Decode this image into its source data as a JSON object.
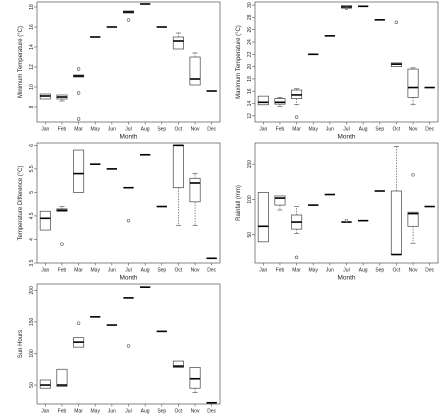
{
  "chart_data": [
    {
      "type": "box",
      "title": "",
      "xlabel": "Month",
      "ylabel": "Minimum Temperature (°C)",
      "ylim": [
        6.5,
        18.5
      ],
      "yticks": [
        8,
        10,
        12,
        14,
        16,
        18
      ],
      "categories": [
        "Jan",
        "Feb",
        "Mar",
        "May",
        "Jun",
        "Jul",
        "Aug",
        "Sep",
        "Oct",
        "Nov",
        "Dec"
      ],
      "boxes": [
        {
          "min": 8.8,
          "q1": 8.8,
          "median": 9.1,
          "q3": 9.3,
          "max": 9.3,
          "outliers": []
        },
        {
          "min": 8.6,
          "q1": 8.8,
          "median": 9.0,
          "q3": 9.2,
          "max": 9.2,
          "outliers": []
        },
        {
          "min": 11.0,
          "q1": 11.0,
          "median": 11.1,
          "q3": 11.2,
          "max": 11.2,
          "outliers": [
            11.8,
            9.4,
            6.8
          ]
        },
        {
          "min": 15.0,
          "q1": 15.0,
          "median": 15.0,
          "q3": 15.0,
          "max": 15.0,
          "outliers": []
        },
        {
          "min": 16.0,
          "q1": 16.0,
          "median": 16.0,
          "q3": 16.0,
          "max": 16.0,
          "outliers": []
        },
        {
          "min": 17.4,
          "q1": 17.4,
          "median": 17.5,
          "q3": 17.6,
          "max": 17.6,
          "outliers": [
            16.7
          ]
        },
        {
          "min": 18.3,
          "q1": 18.3,
          "median": 18.3,
          "q3": 18.3,
          "max": 18.3,
          "outliers": []
        },
        {
          "min": 16.0,
          "q1": 16.0,
          "median": 16.0,
          "q3": 16.0,
          "max": 16.0,
          "outliers": []
        },
        {
          "min": 13.8,
          "q1": 13.8,
          "median": 14.6,
          "q3": 15.0,
          "max": 15.4,
          "outliers": []
        },
        {
          "min": 10.2,
          "q1": 10.2,
          "median": 10.8,
          "q3": 13.0,
          "max": 13.4,
          "outliers": []
        },
        {
          "min": 9.6,
          "q1": 9.6,
          "median": 9.6,
          "q3": 9.6,
          "max": 9.6,
          "outliers": []
        }
      ]
    },
    {
      "type": "box",
      "title": "",
      "xlabel": "Month",
      "ylabel": "Maximum Temperature (°C)",
      "ylim": [
        11,
        30.5
      ],
      "yticks": [
        12,
        14,
        16,
        18,
        20,
        22,
        24,
        26,
        28,
        30
      ],
      "categories": [
        "Jan",
        "Feb",
        "Mar",
        "May",
        "Jun",
        "Jul",
        "Aug",
        "Sep",
        "Oct",
        "Nov",
        "Dec"
      ],
      "boxes": [
        {
          "min": 13.8,
          "q1": 13.8,
          "median": 14.2,
          "q3": 15.2,
          "max": 15.2,
          "outliers": []
        },
        {
          "min": 13.5,
          "q1": 13.9,
          "median": 14.2,
          "q3": 14.8,
          "max": 15.0,
          "outliers": []
        },
        {
          "min": 13.8,
          "q1": 14.8,
          "median": 15.4,
          "q3": 16.2,
          "max": 16.4,
          "outliers": [
            11.8
          ]
        },
        {
          "min": 22.0,
          "q1": 22.0,
          "median": 22.0,
          "q3": 22.0,
          "max": 22.0,
          "outliers": []
        },
        {
          "min": 25.0,
          "q1": 25.0,
          "median": 25.0,
          "q3": 25.0,
          "max": 25.0,
          "outliers": []
        },
        {
          "min": 29.5,
          "q1": 29.5,
          "median": 29.7,
          "q3": 29.9,
          "max": 29.9,
          "outliers": [
            29.5
          ]
        },
        {
          "min": 29.8,
          "q1": 29.8,
          "median": 29.8,
          "q3": 29.8,
          "max": 29.8,
          "outliers": []
        },
        {
          "min": 27.6,
          "q1": 27.6,
          "median": 27.6,
          "q3": 27.6,
          "max": 27.6,
          "outliers": []
        },
        {
          "min": 20.0,
          "q1": 20.0,
          "median": 20.4,
          "q3": 20.6,
          "max": 20.6,
          "outliers": [
            27.2
          ]
        },
        {
          "min": 13.8,
          "q1": 15.0,
          "median": 16.6,
          "q3": 19.6,
          "max": 19.8,
          "outliers": []
        },
        {
          "min": 16.6,
          "q1": 16.6,
          "median": 16.6,
          "q3": 16.6,
          "max": 16.6,
          "outliers": []
        }
      ]
    },
    {
      "type": "box",
      "title": "",
      "xlabel": "Month",
      "ylabel": "Temperature Difference (°C)",
      "ylim": [
        3.5,
        6.05
      ],
      "yticks": [
        3.5,
        4.0,
        4.5,
        5.0,
        5.5,
        6.0
      ],
      "categories": [
        "Jan",
        "Feb",
        "Mar",
        "May",
        "Jun",
        "Jul",
        "Aug",
        "Sep",
        "Oct",
        "Nov",
        "Dec"
      ],
      "boxes": [
        {
          "min": 4.2,
          "q1": 4.2,
          "median": 4.45,
          "q3": 4.6,
          "max": 4.6,
          "outliers": []
        },
        {
          "min": 4.6,
          "q1": 4.6,
          "median": 4.62,
          "q3": 4.65,
          "max": 4.7,
          "outliers": [
            3.9
          ]
        },
        {
          "min": 5.0,
          "q1": 5.0,
          "median": 5.4,
          "q3": 5.9,
          "max": 5.9,
          "outliers": []
        },
        {
          "min": 5.6,
          "q1": 5.6,
          "median": 5.6,
          "q3": 5.6,
          "max": 5.6,
          "outliers": []
        },
        {
          "min": 5.5,
          "q1": 5.5,
          "median": 5.5,
          "q3": 5.5,
          "max": 5.5,
          "outliers": []
        },
        {
          "min": 5.1,
          "q1": 5.1,
          "median": 5.1,
          "q3": 5.1,
          "max": 5.1,
          "outliers": [
            4.4
          ]
        },
        {
          "min": 5.8,
          "q1": 5.8,
          "median": 5.8,
          "q3": 5.8,
          "max": 5.8,
          "outliers": []
        },
        {
          "min": 4.7,
          "q1": 4.7,
          "median": 4.7,
          "q3": 4.7,
          "max": 4.7,
          "outliers": []
        },
        {
          "min": 4.3,
          "q1": 5.1,
          "median": 6.0,
          "q3": 6.0,
          "max": 6.0,
          "outliers": []
        },
        {
          "min": 4.3,
          "q1": 4.8,
          "median": 5.2,
          "q3": 5.3,
          "max": 5.4,
          "outliers": []
        },
        {
          "min": 3.6,
          "q1": 3.6,
          "median": 3.6,
          "q3": 3.6,
          "max": 3.6,
          "outliers": []
        }
      ]
    },
    {
      "type": "box",
      "title": "",
      "xlabel": "Month",
      "ylabel": "Rainfall (mm)",
      "ylim": [
        10,
        180
      ],
      "yticks": [
        50,
        100,
        150
      ],
      "categories": [
        "Jan",
        "Feb",
        "Mar",
        "May",
        "Jun",
        "Jul",
        "Aug",
        "Sep",
        "Oct",
        "Nov",
        "Dec"
      ],
      "boxes": [
        {
          "min": 40,
          "q1": 40,
          "median": 62,
          "q3": 110,
          "max": 110,
          "outliers": []
        },
        {
          "min": 85,
          "q1": 92,
          "median": 102,
          "q3": 105,
          "max": 105,
          "outliers": []
        },
        {
          "min": 52,
          "q1": 58,
          "median": 68,
          "q3": 78,
          "max": 90,
          "outliers": [
            18
          ]
        },
        {
          "min": 92,
          "q1": 92,
          "median": 92,
          "q3": 92,
          "max": 92,
          "outliers": []
        },
        {
          "min": 107,
          "q1": 107,
          "median": 107,
          "q3": 107,
          "max": 107,
          "outliers": []
        },
        {
          "min": 68,
          "q1": 68,
          "median": 68,
          "q3": 68,
          "max": 68,
          "outliers": [
            70
          ]
        },
        {
          "min": 70,
          "q1": 70,
          "median": 70,
          "q3": 70,
          "max": 70,
          "outliers": []
        },
        {
          "min": 112,
          "q1": 112,
          "median": 112,
          "q3": 112,
          "max": 112,
          "outliers": []
        },
        {
          "min": 22,
          "q1": 22,
          "median": 22,
          "q3": 112,
          "max": 175,
          "outliers": []
        },
        {
          "min": 38,
          "q1": 62,
          "median": 80,
          "q3": 82,
          "max": 82,
          "outliers": [
            135
          ]
        },
        {
          "min": 90,
          "q1": 90,
          "median": 90,
          "q3": 90,
          "max": 90,
          "outliers": []
        }
      ]
    },
    {
      "type": "box",
      "title": "",
      "xlabel": "Month",
      "ylabel": "Sun Hours",
      "ylim": [
        20,
        210
      ],
      "yticks": [
        50,
        100,
        150,
        200
      ],
      "categories": [
        "Jan",
        "Feb",
        "Mar",
        "May",
        "Jun",
        "Jul",
        "Aug",
        "Sep",
        "Oct",
        "Nov",
        "Dec"
      ],
      "boxes": [
        {
          "min": 45,
          "q1": 45,
          "median": 50,
          "q3": 58,
          "max": 58,
          "outliers": []
        },
        {
          "min": 48,
          "q1": 48,
          "median": 50,
          "q3": 75,
          "max": 75,
          "outliers": []
        },
        {
          "min": 110,
          "q1": 110,
          "median": 118,
          "q3": 125,
          "max": 125,
          "outliers": [
            148
          ]
        },
        {
          "min": 158,
          "q1": 158,
          "median": 158,
          "q3": 158,
          "max": 158,
          "outliers": []
        },
        {
          "min": 145,
          "q1": 145,
          "median": 145,
          "q3": 145,
          "max": 145,
          "outliers": []
        },
        {
          "min": 188,
          "q1": 188,
          "median": 188,
          "q3": 188,
          "max": 188,
          "outliers": [
            112
          ]
        },
        {
          "min": 205,
          "q1": 205,
          "median": 205,
          "q3": 205,
          "max": 205,
          "outliers": []
        },
        {
          "min": 135,
          "q1": 135,
          "median": 135,
          "q3": 135,
          "max": 135,
          "outliers": []
        },
        {
          "min": 78,
          "q1": 78,
          "median": 80,
          "q3": 88,
          "max": 88,
          "outliers": []
        },
        {
          "min": 38,
          "q1": 45,
          "median": 60,
          "q3": 78,
          "max": 78,
          "outliers": []
        },
        {
          "min": 22,
          "q1": 22,
          "median": 22,
          "q3": 22,
          "max": 22,
          "outliers": []
        }
      ]
    }
  ]
}
